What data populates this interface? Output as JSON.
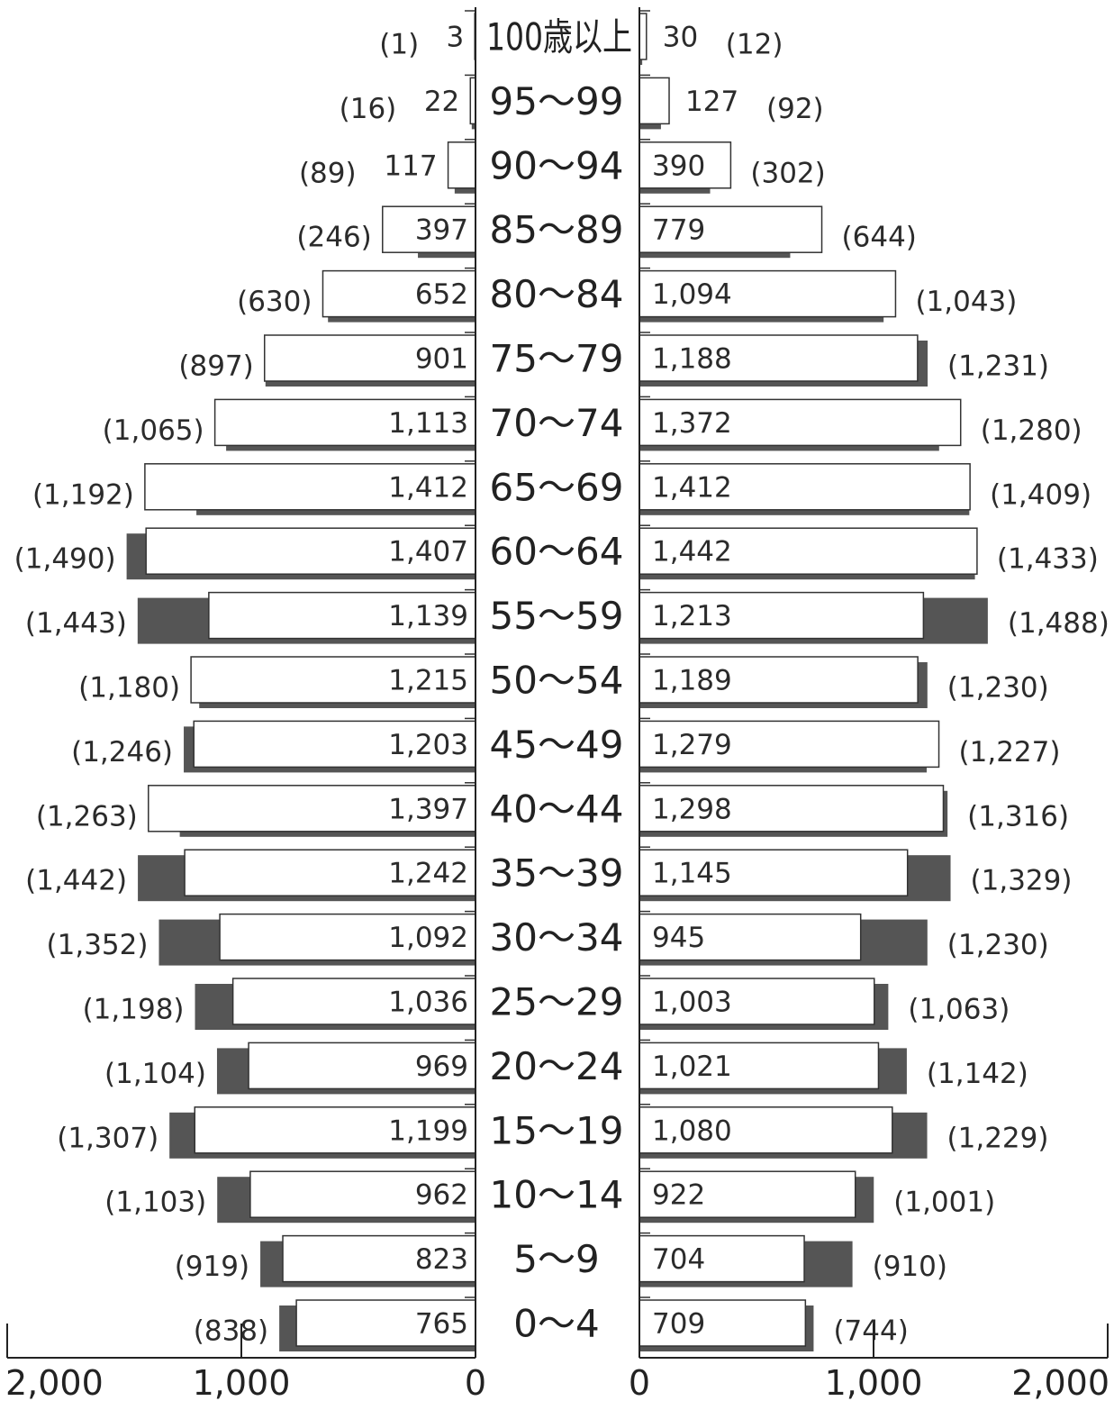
{
  "chart_data": {
    "type": "bar",
    "categories": [
      "100歳以上",
      "95〜99",
      "90〜94",
      "85〜89",
      "80〜84",
      "75〜79",
      "70〜74",
      "65〜69",
      "60〜64",
      "55〜59",
      "50〜54",
      "45〜49",
      "40〜44",
      "35〜39",
      "30〜34",
      "25〜29",
      "20〜24",
      "15〜19",
      "10〜14",
      "5〜9",
      "0〜4"
    ],
    "series": [
      {
        "side": "left",
        "kind": "current",
        "values": [
          3,
          22,
          117,
          397,
          652,
          901,
          1113,
          1412,
          1407,
          1139,
          1215,
          1203,
          1397,
          1242,
          1092,
          1036,
          969,
          1199,
          962,
          823,
          765
        ],
        "labels": [
          "3",
          "22",
          "117",
          "397",
          "652",
          "901",
          "1,113",
          "1,412",
          "1,407",
          "1,139",
          "1,215",
          "1,203",
          "1,397",
          "1,242",
          "1,092",
          "1,036",
          "969",
          "1,199",
          "962",
          "823",
          "765"
        ]
      },
      {
        "side": "left",
        "kind": "previous",
        "values": [
          1,
          16,
          89,
          246,
          630,
          897,
          1065,
          1192,
          1490,
          1443,
          1180,
          1246,
          1263,
          1442,
          1352,
          1198,
          1104,
          1307,
          1103,
          919,
          838
        ],
        "labels": [
          "(1)",
          "(16)",
          "(89)",
          "(246)",
          "(630)",
          "(897)",
          "(1,065)",
          "(1,192)",
          "(1,490)",
          "(1,443)",
          "(1,180)",
          "(1,246)",
          "(1,263)",
          "(1,442)",
          "(1,352)",
          "(1,198)",
          "(1,104)",
          "(1,307)",
          "(1,103)",
          "(919)",
          "(838)"
        ]
      },
      {
        "side": "right",
        "kind": "current",
        "values": [
          30,
          127,
          390,
          779,
          1094,
          1188,
          1372,
          1412,
          1442,
          1213,
          1189,
          1279,
          1298,
          1145,
          945,
          1003,
          1021,
          1080,
          922,
          704,
          709
        ],
        "labels": [
          "30",
          "127",
          "390",
          "779",
          "1,094",
          "1,188",
          "1,372",
          "1,412",
          "1,442",
          "1,213",
          "1,189",
          "1,279",
          "1,298",
          "1,145",
          "945",
          "1,003",
          "1,021",
          "1,080",
          "922",
          "704",
          "709"
        ]
      },
      {
        "side": "right",
        "kind": "previous",
        "values": [
          12,
          92,
          302,
          644,
          1043,
          1231,
          1280,
          1409,
          1433,
          1488,
          1230,
          1227,
          1316,
          1329,
          1230,
          1063,
          1142,
          1229,
          1001,
          910,
          744
        ],
        "labels": [
          "(12)",
          "(92)",
          "(302)",
          "(644)",
          "(1,043)",
          "(1,231)",
          "(1,280)",
          "(1,409)",
          "(1,433)",
          "(1,488)",
          "(1,230)",
          "(1,227)",
          "(1,316)",
          "(1,329)",
          "(1,230)",
          "(1,063)",
          "(1,142)",
          "(1,229)",
          "(1,001)",
          "(910)",
          "(744)"
        ]
      }
    ],
    "left_axis": {
      "ticks": [
        "2,000",
        "1,000",
        "0"
      ],
      "tick_values": [
        2000,
        1000,
        0
      ],
      "range": [
        0,
        2000
      ]
    },
    "right_axis": {
      "ticks": [
        "0",
        "1,000",
        "2,000"
      ],
      "tick_values": [
        0,
        1000,
        2000
      ],
      "range": [
        0,
        2000
      ]
    },
    "colors": {
      "current_fill": "#ffffff",
      "current_stroke": "#333333",
      "previous_fill": "#555555"
    }
  }
}
